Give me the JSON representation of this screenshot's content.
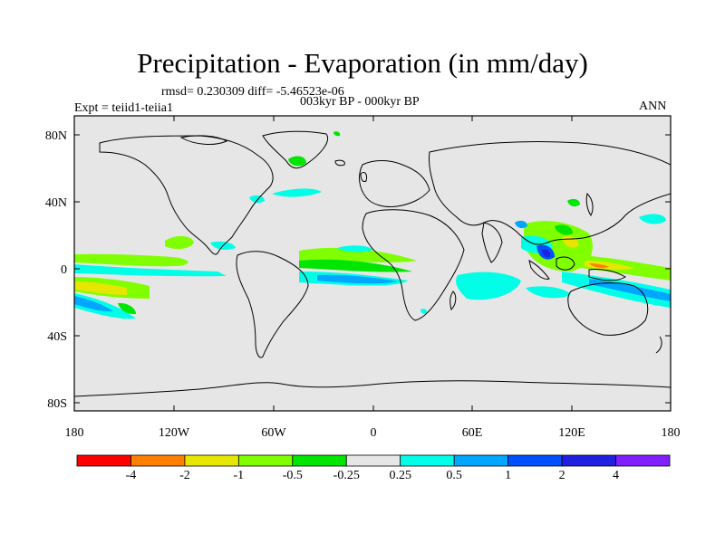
{
  "title": "Precipitation - Evaporation (in mm/day)",
  "stats": "rmsd= 0.230309 diff= -5.46523e-06",
  "experiment": "Expt = teiid1-teiia1",
  "period": "003kyr BP - 000kyr BP",
  "season": "ANN",
  "lat_ticks": [
    "80N",
    "40N",
    "0",
    "40S",
    "80S"
  ],
  "lon_ticks": [
    "180",
    "120W",
    "60W",
    "0",
    "60E",
    "120E",
    "180"
  ],
  "colorbar": {
    "labels": [
      "-4",
      "-2",
      "-1",
      "-0.5",
      "-0.25",
      "0.25",
      "0.5",
      "1",
      "2",
      "4"
    ],
    "colors": [
      "#ff0000",
      "#ff8000",
      "#e6e600",
      "#80ff00",
      "#00e600",
      "#e6e6e6",
      "#00ffe6",
      "#00a6ff",
      "#0050ff",
      "#2020e0",
      "#8020ff"
    ]
  },
  "colors": {
    "ocean_land": "#e6e6e6",
    "coast": "#000000"
  }
}
